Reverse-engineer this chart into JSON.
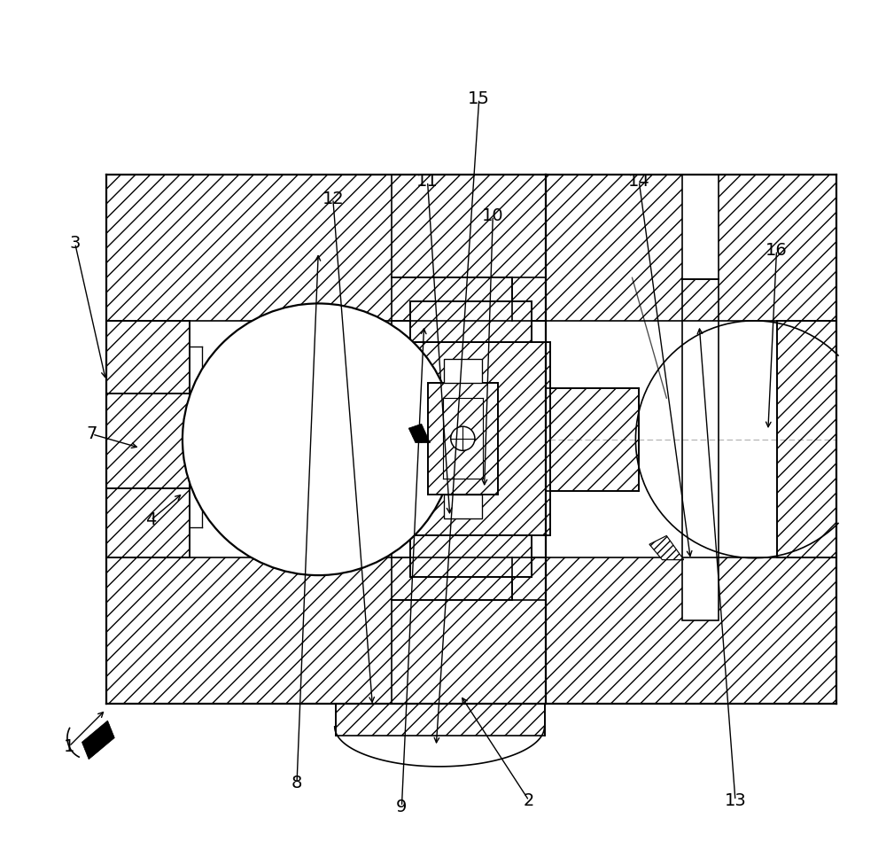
{
  "background_color": "#ffffff",
  "line_color": "#000000",
  "figsize": [
    10.0,
    9.76
  ],
  "dpi": 100,
  "labels_data": {
    "1": {
      "lpos": [
        0.065,
        0.135
      ],
      "tpos": [
        0.108,
        0.178
      ]
    },
    "2": {
      "lpos": [
        0.6,
        0.072
      ],
      "tpos": [
        0.52,
        0.195
      ]
    },
    "3": {
      "lpos": [
        0.072,
        0.72
      ],
      "tpos": [
        0.108,
        0.56
      ]
    },
    "4": {
      "lpos": [
        0.16,
        0.398
      ],
      "tpos": [
        0.198,
        0.43
      ]
    },
    "7": {
      "lpos": [
        0.092,
        0.498
      ],
      "tpos": [
        0.148,
        0.482
      ]
    },
    "8": {
      "lpos": [
        0.33,
        0.092
      ],
      "tpos": [
        0.355,
        0.71
      ]
    },
    "9": {
      "lpos": [
        0.452,
        0.065
      ],
      "tpos": [
        0.478,
        0.625
      ]
    },
    "10": {
      "lpos": [
        0.558,
        0.752
      ],
      "tpos": [
        0.548,
        0.435
      ]
    },
    "11": {
      "lpos": [
        0.482,
        0.792
      ],
      "tpos": [
        0.508,
        0.402
      ]
    },
    "12": {
      "lpos": [
        0.372,
        0.772
      ],
      "tpos": [
        0.418,
        0.182
      ]
    },
    "13": {
      "lpos": [
        0.84,
        0.072
      ],
      "tpos": [
        0.798,
        0.625
      ]
    },
    "14": {
      "lpos": [
        0.728,
        0.792
      ],
      "tpos": [
        0.788,
        0.352
      ]
    },
    "15": {
      "lpos": [
        0.542,
        0.888
      ],
      "tpos": [
        0.492,
        0.135
      ]
    },
    "16": {
      "lpos": [
        0.888,
        0.712
      ],
      "tpos": [
        0.878,
        0.502
      ]
    }
  }
}
